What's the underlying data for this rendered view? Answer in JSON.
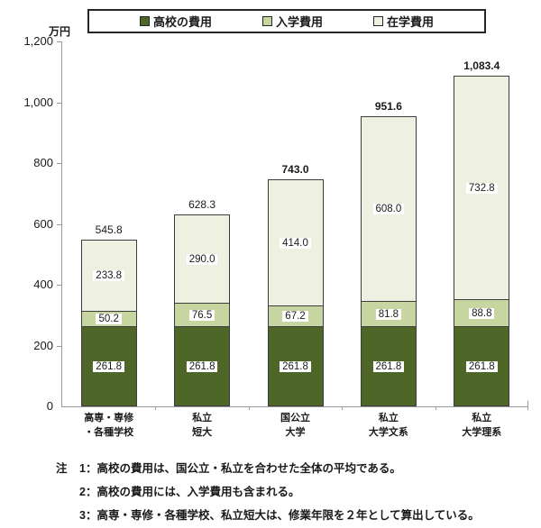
{
  "unit_label": "万円",
  "legend": {
    "items": [
      {
        "label": "高校の費用",
        "color": "#4e6729"
      },
      {
        "label": "入学費用",
        "color": "#c7d5a0"
      },
      {
        "label": "在学費用",
        "color": "#eef0e1"
      }
    ]
  },
  "chart_data": {
    "type": "bar",
    "stacked": true,
    "title": "",
    "unit": "万円",
    "ylim": [
      0,
      1200
    ],
    "ytick_step": 200,
    "yticks": [
      {
        "value": 0,
        "label": "0"
      },
      {
        "value": 200,
        "label": "200"
      },
      {
        "value": 400,
        "label": "400"
      },
      {
        "value": 600,
        "label": "600"
      },
      {
        "value": 800,
        "label": "800"
      },
      {
        "value": 1000,
        "label": "1,000"
      },
      {
        "value": 1200,
        "label": "1,200"
      }
    ],
    "categories": [
      {
        "lines": [
          "高専・専修",
          "・各種学校"
        ]
      },
      {
        "lines": [
          "私立",
          "短大"
        ]
      },
      {
        "lines": [
          "国公立",
          "大学"
        ]
      },
      {
        "lines": [
          "私立",
          "大学文系"
        ]
      },
      {
        "lines": [
          "私立",
          "大学理系"
        ]
      }
    ],
    "series": [
      {
        "name": "高校の費用",
        "color": "#4e6729",
        "text_color": "#1a1a1a",
        "values": [
          261.8,
          261.8,
          261.8,
          261.8,
          261.8
        ]
      },
      {
        "name": "入学費用",
        "color": "#c7d5a0",
        "text_color": "#1a1a1a",
        "values": [
          50.2,
          76.5,
          67.2,
          81.8,
          88.8
        ]
      },
      {
        "name": "在学費用",
        "color": "#eef0e1",
        "text_color": "#1a1a1a",
        "values": [
          233.8,
          290.0,
          414.0,
          608.0,
          732.8
        ]
      }
    ],
    "totals": [
      {
        "label": "545.8",
        "bold": false
      },
      {
        "label": "628.3",
        "bold": false
      },
      {
        "label": "743.0",
        "bold": true
      },
      {
        "label": "951.6",
        "bold": true
      },
      {
        "label": "1,083.4",
        "bold": true
      }
    ],
    "grid": false,
    "legend_position": "top"
  },
  "notes": {
    "prefix": "注",
    "items": [
      {
        "num": "1",
        "text": "：高校の費用は、国公立・私立を合わせた全体の平均である。"
      },
      {
        "num": "2",
        "text": "：高校の費用には、入学費用も含まれる。"
      },
      {
        "num": "3",
        "text": "：高専・専修・各種学校、私立短大は、修業年限を２年として算出している。"
      }
    ]
  }
}
